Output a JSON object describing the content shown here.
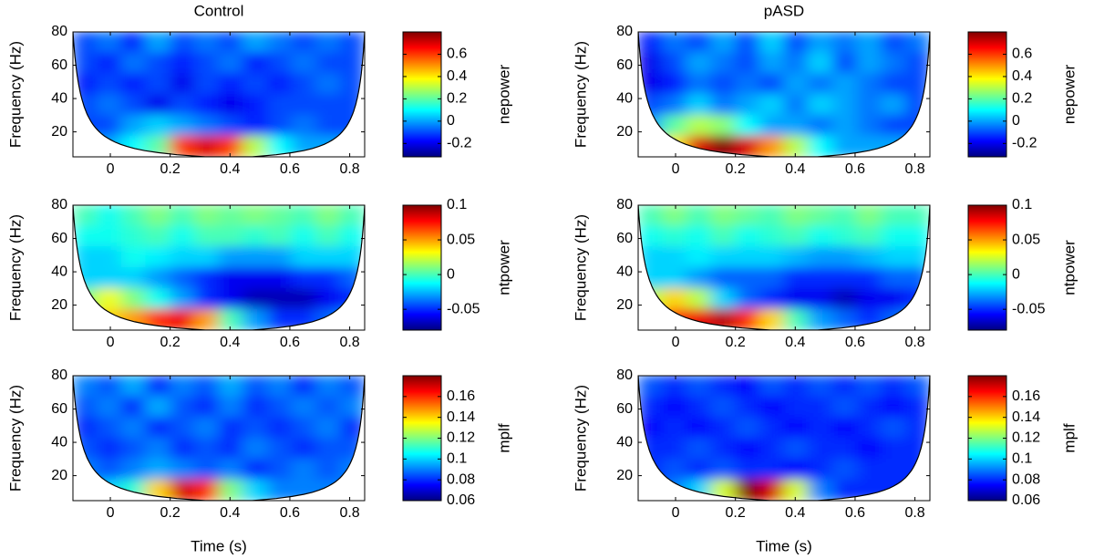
{
  "chart_data": [
    {
      "type": "heatmap",
      "title": "Control",
      "ylabel": "Frequency (Hz)",
      "colorbar_label": "nepower",
      "colormap": "jet",
      "x": [
        -0.084,
        -0.003,
        0.078,
        0.159,
        0.241,
        0.322,
        0.403,
        0.484,
        0.566,
        0.647,
        0.728,
        0.809
      ],
      "y": [
        73.75,
        61.25,
        48.75,
        36.25,
        23.75,
        11.25
      ],
      "values": [
        [
          -0.1,
          -0.05,
          -0.15,
          0,
          -0.1,
          -0.05,
          -0.1,
          0,
          -0.05,
          -0.1,
          -0.05,
          -0.1
        ],
        [
          -0.1,
          -0.15,
          -0.05,
          -0.1,
          -0.15,
          -0.1,
          -0.05,
          -0.15,
          -0.1,
          -0.05,
          -0.1,
          -0.1
        ],
        [
          -0.15,
          -0.1,
          -0.15,
          -0.1,
          -0.2,
          -0.1,
          -0.15,
          -0.1,
          -0.15,
          -0.1,
          -0.05,
          -0.1
        ],
        [
          -0.1,
          -0.05,
          -0.1,
          -0.2,
          -0.1,
          -0.15,
          -0.2,
          -0.15,
          -0.1,
          -0.1,
          -0.1,
          -0.1
        ],
        [
          -0.1,
          -0.1,
          0,
          0.05,
          0,
          -0.05,
          -0.1,
          -0.15,
          -0.1,
          -0.05,
          -0.1,
          -0.1
        ],
        [
          0,
          0,
          0.1,
          0.2,
          0.6,
          0.7,
          0.6,
          0.3,
          0.1,
          0,
          0,
          0
        ]
      ],
      "xlim": [
        -0.125,
        0.85
      ],
      "ylim": [
        5,
        80
      ],
      "xticks": [
        0,
        0.2,
        0.4,
        0.6,
        0.8
      ],
      "yticks": [
        20,
        40,
        60,
        80
      ],
      "clim": [
        -0.32,
        0.8
      ],
      "cticks": [
        -0.2,
        0,
        0.2,
        0.4,
        0.6
      ]
    },
    {
      "type": "heatmap",
      "title": "pASD",
      "ylabel": "Frequency (Hz)",
      "colorbar_label": "nepower",
      "colormap": "jet",
      "x": [
        -0.084,
        -0.003,
        0.078,
        0.159,
        0.241,
        0.322,
        0.403,
        0.484,
        0.566,
        0.647,
        0.728,
        0.809
      ],
      "y": [
        73.75,
        61.25,
        48.75,
        36.25,
        23.75,
        11.25
      ],
      "values": [
        [
          -0.15,
          -0.05,
          -0.1,
          0,
          -0.1,
          0.05,
          -0.1,
          0,
          -0.05,
          0,
          -0.1,
          -0.05
        ],
        [
          -0.2,
          -0.1,
          0,
          -0.05,
          -0.1,
          0,
          -0.05,
          0.05,
          -0.1,
          0,
          -0.05,
          -0.1
        ],
        [
          -0.2,
          -0.15,
          -0.05,
          -0.1,
          -0.05,
          -0.1,
          0,
          -0.05,
          0,
          -0.05,
          -0.1,
          -0.1
        ],
        [
          -0.1,
          -0.05,
          0.05,
          -0.05,
          0,
          0.05,
          -0.05,
          0.05,
          0,
          -0.05,
          0,
          -0.1
        ],
        [
          0,
          0.2,
          0.3,
          0.25,
          0.1,
          0,
          0,
          -0.05,
          0,
          -0.05,
          -0.1,
          -0.1
        ],
        [
          0.2,
          0.4,
          0.7,
          0.8,
          0.7,
          0.5,
          0.3,
          0.1,
          0,
          0,
          0,
          0
        ]
      ],
      "xlim": [
        -0.125,
        0.85
      ],
      "ylim": [
        5,
        80
      ],
      "xticks": [
        0,
        0.2,
        0.4,
        0.6,
        0.8
      ],
      "yticks": [
        20,
        40,
        60,
        80
      ],
      "clim": [
        -0.32,
        0.8
      ],
      "cticks": [
        -0.2,
        0,
        0.2,
        0.4,
        0.6
      ]
    },
    {
      "type": "heatmap",
      "ylabel": "Frequency (Hz)",
      "colorbar_label": "ntpower",
      "colormap": "jet",
      "x": [
        -0.084,
        -0.003,
        0.078,
        0.159,
        0.241,
        0.322,
        0.403,
        0.484,
        0.566,
        0.647,
        0.728,
        0.809
      ],
      "y": [
        73.75,
        61.25,
        48.75,
        36.25,
        23.75,
        11.25
      ],
      "values": [
        [
          0,
          -0.01,
          0,
          0.01,
          0,
          0.01,
          0.005,
          0.01,
          0.005,
          0,
          0.01,
          0
        ],
        [
          -0.01,
          -0.01,
          -0.005,
          0,
          -0.01,
          0,
          0,
          -0.005,
          0,
          -0.01,
          0,
          -0.01
        ],
        [
          -0.02,
          -0.02,
          -0.01,
          -0.015,
          -0.02,
          -0.02,
          -0.03,
          -0.03,
          -0.03,
          -0.02,
          -0.02,
          -0.02
        ],
        [
          -0.02,
          -0.02,
          -0.02,
          -0.03,
          -0.04,
          -0.05,
          -0.06,
          -0.06,
          -0.06,
          -0.05,
          -0.05,
          -0.04
        ],
        [
          0.01,
          0.03,
          0.01,
          -0.01,
          -0.03,
          -0.05,
          -0.06,
          -0.07,
          -0.07,
          -0.07,
          -0.06,
          -0.05
        ],
        [
          0.02,
          0.04,
          0.05,
          0.07,
          0.08,
          0.05,
          0,
          -0.03,
          -0.05,
          -0.05,
          -0.04,
          -0.03
        ]
      ],
      "xlim": [
        -0.125,
        0.85
      ],
      "ylim": [
        5,
        80
      ],
      "xticks": [
        0,
        0.2,
        0.4,
        0.6,
        0.8
      ],
      "yticks": [
        20,
        40,
        60,
        80
      ],
      "clim": [
        -0.08,
        0.1
      ],
      "cticks": [
        -0.05,
        0,
        0.05,
        0.1
      ]
    },
    {
      "type": "heatmap",
      "ylabel": "Frequency (Hz)",
      "colorbar_label": "ntpower",
      "colormap": "jet",
      "x": [
        -0.084,
        -0.003,
        0.078,
        0.159,
        0.241,
        0.322,
        0.403,
        0.484,
        0.566,
        0.647,
        0.728,
        0.809
      ],
      "y": [
        73.75,
        61.25,
        48.75,
        36.25,
        23.75,
        11.25
      ],
      "values": [
        [
          0,
          0.01,
          0,
          0.01,
          0.005,
          0,
          0.01,
          0.005,
          0,
          0.01,
          0,
          0
        ],
        [
          -0.01,
          -0.005,
          -0.01,
          0,
          -0.01,
          -0.005,
          0,
          -0.01,
          -0.005,
          0,
          -0.01,
          -0.01
        ],
        [
          -0.02,
          -0.02,
          -0.015,
          -0.02,
          -0.02,
          -0.02,
          -0.025,
          -0.03,
          -0.03,
          -0.025,
          -0.02,
          -0.02
        ],
        [
          -0.02,
          -0.02,
          -0.03,
          -0.04,
          -0.04,
          -0.04,
          -0.05,
          -0.05,
          -0.05,
          -0.05,
          -0.04,
          -0.04
        ],
        [
          0.02,
          0.04,
          0.02,
          -0.02,
          -0.04,
          -0.05,
          -0.06,
          -0.06,
          -0.07,
          -0.06,
          -0.06,
          -0.05
        ],
        [
          0.04,
          0.07,
          0.08,
          0.09,
          0.07,
          0.04,
          0,
          -0.03,
          -0.04,
          -0.05,
          -0.04,
          -0.03
        ]
      ],
      "xlim": [
        -0.125,
        0.85
      ],
      "ylim": [
        5,
        80
      ],
      "xticks": [
        0,
        0.2,
        0.4,
        0.6,
        0.8
      ],
      "yticks": [
        20,
        40,
        60,
        80
      ],
      "clim": [
        -0.08,
        0.1
      ],
      "cticks": [
        -0.05,
        0,
        0.05,
        0.1
      ]
    },
    {
      "type": "heatmap",
      "xlabel": "Time (s)",
      "ylabel": "Frequency (Hz)",
      "colorbar_label": "mplf",
      "colormap": "jet",
      "x": [
        -0.084,
        -0.003,
        0.078,
        0.159,
        0.241,
        0.322,
        0.403,
        0.484,
        0.566,
        0.647,
        0.728,
        0.809
      ],
      "y": [
        73.75,
        61.25,
        48.75,
        36.25,
        23.75,
        11.25
      ],
      "values": [
        [
          0.09,
          0.085,
          0.095,
          0.08,
          0.09,
          0.085,
          0.095,
          0.085,
          0.09,
          0.08,
          0.09,
          0.085
        ],
        [
          0.085,
          0.09,
          0.08,
          0.095,
          0.085,
          0.08,
          0.09,
          0.08,
          0.085,
          0.09,
          0.085,
          0.09
        ],
        [
          0.08,
          0.085,
          0.09,
          0.08,
          0.085,
          0.09,
          0.08,
          0.085,
          0.08,
          0.085,
          0.09,
          0.08
        ],
        [
          0.085,
          0.08,
          0.085,
          0.09,
          0.08,
          0.085,
          0.08,
          0.09,
          0.085,
          0.08,
          0.085,
          0.085
        ],
        [
          0.09,
          0.085,
          0.09,
          0.095,
          0.09,
          0.085,
          0.09,
          0.08,
          0.085,
          0.09,
          0.085,
          0.09
        ],
        [
          0.09,
          0.1,
          0.11,
          0.14,
          0.17,
          0.16,
          0.12,
          0.1,
          0.09,
          0.09,
          0.09,
          0.09
        ]
      ],
      "xlim": [
        -0.125,
        0.85
      ],
      "ylim": [
        5,
        80
      ],
      "xticks": [
        0,
        0.2,
        0.4,
        0.6,
        0.8
      ],
      "yticks": [
        20,
        40,
        60,
        80
      ],
      "clim": [
        0.06,
        0.18
      ],
      "cticks": [
        0.06,
        0.08,
        0.1,
        0.12,
        0.14,
        0.16
      ]
    },
    {
      "type": "heatmap",
      "xlabel": "Time (s)",
      "ylabel": "Frequency (Hz)",
      "colorbar_label": "mplf",
      "colormap": "jet",
      "x": [
        -0.084,
        -0.003,
        0.078,
        0.159,
        0.241,
        0.322,
        0.403,
        0.484,
        0.566,
        0.647,
        0.728,
        0.809
      ],
      "y": [
        73.75,
        61.25,
        48.75,
        36.25,
        23.75,
        11.25
      ],
      "values": [
        [
          0.085,
          0.08,
          0.085,
          0.08,
          0.075,
          0.085,
          0.08,
          0.085,
          0.08,
          0.085,
          0.08,
          0.085
        ],
        [
          0.08,
          0.075,
          0.08,
          0.085,
          0.08,
          0.075,
          0.08,
          0.08,
          0.085,
          0.08,
          0.075,
          0.08
        ],
        [
          0.075,
          0.08,
          0.075,
          0.08,
          0.085,
          0.08,
          0.075,
          0.08,
          0.075,
          0.08,
          0.085,
          0.08
        ],
        [
          0.08,
          0.08,
          0.085,
          0.08,
          0.075,
          0.08,
          0.085,
          0.08,
          0.08,
          0.075,
          0.08,
          0.08
        ],
        [
          0.08,
          0.085,
          0.08,
          0.085,
          0.08,
          0.08,
          0.075,
          0.08,
          0.085,
          0.08,
          0.08,
          0.08
        ],
        [
          0.08,
          0.09,
          0.1,
          0.13,
          0.18,
          0.17,
          0.13,
          0.09,
          0.08,
          0.08,
          0.08,
          0.08
        ]
      ],
      "xlim": [
        -0.125,
        0.85
      ],
      "ylim": [
        5,
        80
      ],
      "xticks": [
        0,
        0.2,
        0.4,
        0.6,
        0.8
      ],
      "yticks": [
        20,
        40,
        60,
        80
      ],
      "clim": [
        0.06,
        0.18
      ],
      "cticks": [
        0.06,
        0.08,
        0.1,
        0.12,
        0.14,
        0.16
      ]
    }
  ]
}
